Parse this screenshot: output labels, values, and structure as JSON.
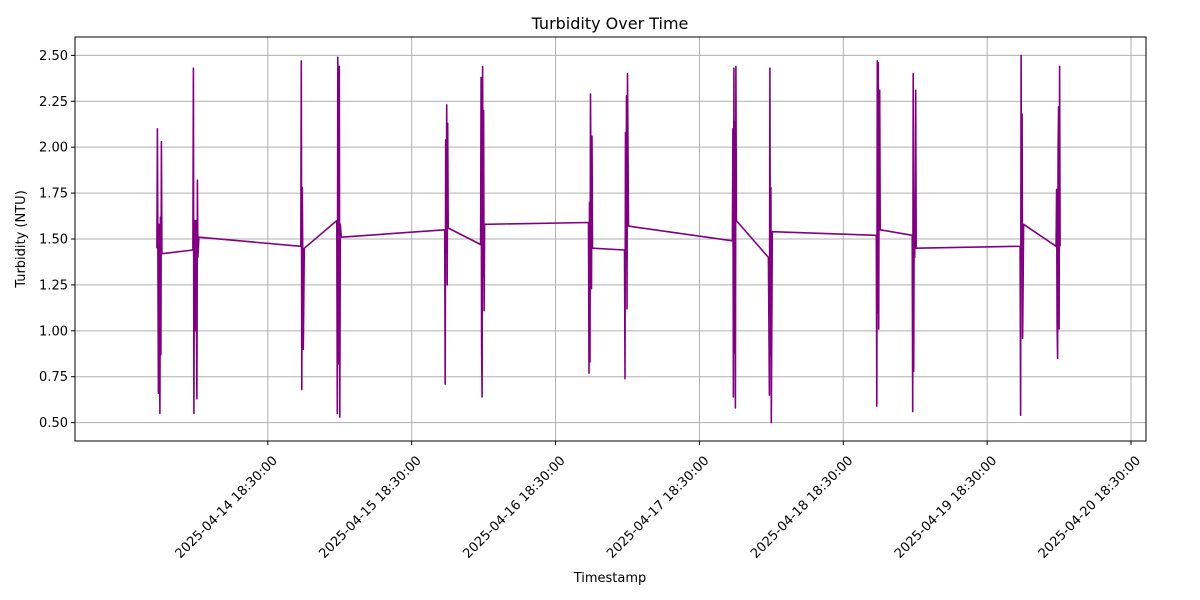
{
  "chart_data": {
    "type": "line",
    "title": "Turbidity Over Time",
    "xlabel": "Timestamp",
    "ylabel": "Turbidity (NTU)",
    "x_type": "datetime",
    "xlim": [
      "2025-04-13 10:20:00",
      "2025-04-20 21:00:00"
    ],
    "ylim": [
      0.4,
      2.6
    ],
    "x_ticks": [
      "2025-04-14 18:30:00",
      "2025-04-15 18:30:00",
      "2025-04-16 18:30:00",
      "2025-04-17 18:30:00",
      "2025-04-18 18:30:00",
      "2025-04-19 18:30:00",
      "2025-04-20 18:30:00"
    ],
    "x_tick_labels": [
      "2025-04-14 18:30:00",
      "2025-04-15 18:30:00",
      "2025-04-16 18:30:00",
      "2025-04-17 18:30:00",
      "2025-04-18 18:30:00",
      "2025-04-19 18:30:00",
      "2025-04-20 18:30:00"
    ],
    "x_tick_rotation": 45,
    "y_ticks": [
      0.5,
      0.75,
      1.0,
      1.25,
      1.5,
      1.75,
      2.0,
      2.25,
      2.5
    ],
    "y_tick_labels": [
      "0.50",
      "0.75",
      "1.00",
      "1.25",
      "1.50",
      "1.75",
      "2.00",
      "2.25",
      "2.50"
    ],
    "grid": true,
    "legend": false,
    "colors": {
      "line": "#800080",
      "grid": "#b0b0b0",
      "axes": "#000000"
    },
    "series": [
      {
        "points": [
          [
            "2025-04-14 00:00:00",
            1.45
          ],
          [
            "2025-04-14 00:05:00",
            2.1
          ],
          [
            "2025-04-14 00:10:00",
            1.4
          ],
          [
            "2025-04-14 00:15:00",
            0.66
          ],
          [
            "2025-04-14 00:20:00",
            1.58
          ],
          [
            "2025-04-14 00:30:00",
            0.55
          ],
          [
            "2025-04-14 00:35:00",
            1.62
          ],
          [
            "2025-04-14 00:40:00",
            0.87
          ],
          [
            "2025-04-14 00:45:00",
            2.03
          ],
          [
            "2025-04-14 00:50:00",
            1.42
          ],
          [
            "2025-04-14 06:00:00",
            1.44
          ],
          [
            "2025-04-14 06:05:00",
            2.43
          ],
          [
            "2025-04-14 06:10:00",
            0.55
          ],
          [
            "2025-04-14 06:15:00",
            1.6
          ],
          [
            "2025-04-14 06:25:00",
            1.0
          ],
          [
            "2025-04-14 06:30:00",
            1.6
          ],
          [
            "2025-04-14 06:40:00",
            0.63
          ],
          [
            "2025-04-14 06:45:00",
            1.82
          ],
          [
            "2025-04-14 06:50:00",
            1.4
          ],
          [
            "2025-04-14 07:00:00",
            1.51
          ],
          [
            "2025-04-15 00:00:00",
            1.46
          ],
          [
            "2025-04-15 00:05:00",
            2.47
          ],
          [
            "2025-04-15 00:10:00",
            0.68
          ],
          [
            "2025-04-15 00:15:00",
            1.78
          ],
          [
            "2025-04-15 00:25:00",
            0.9
          ],
          [
            "2025-04-15 00:35:00",
            1.45
          ],
          [
            "2025-04-15 06:00:00",
            1.6
          ],
          [
            "2025-04-15 06:05:00",
            0.55
          ],
          [
            "2025-04-15 06:10:00",
            2.49
          ],
          [
            "2025-04-15 06:15:00",
            0.82
          ],
          [
            "2025-04-15 06:25:00",
            2.44
          ],
          [
            "2025-04-15 06:30:00",
            0.53
          ],
          [
            "2025-04-15 06:35:00",
            1.58
          ],
          [
            "2025-04-15 06:45:00",
            1.51
          ],
          [
            "2025-04-16 00:00:00",
            1.55
          ],
          [
            "2025-04-16 00:05:00",
            0.71
          ],
          [
            "2025-04-16 00:10:00",
            2.04
          ],
          [
            "2025-04-16 00:15:00",
            1.42
          ],
          [
            "2025-04-16 00:20:00",
            2.23
          ],
          [
            "2025-04-16 00:25:00",
            1.25
          ],
          [
            "2025-04-16 00:30:00",
            2.13
          ],
          [
            "2025-04-16 00:35:00",
            1.56
          ],
          [
            "2025-04-16 06:00:00",
            1.47
          ],
          [
            "2025-04-16 06:05:00",
            2.38
          ],
          [
            "2025-04-16 06:10:00",
            0.9
          ],
          [
            "2025-04-16 06:15:00",
            0.64
          ],
          [
            "2025-04-16 06:20:00",
            2.44
          ],
          [
            "2025-04-16 06:25:00",
            1.3
          ],
          [
            "2025-04-16 06:30:00",
            2.2
          ],
          [
            "2025-04-16 06:35:00",
            1.11
          ],
          [
            "2025-04-16 06:40:00",
            1.58
          ],
          [
            "2025-04-17 00:00:00",
            1.59
          ],
          [
            "2025-04-17 00:05:00",
            0.77
          ],
          [
            "2025-04-17 00:10:00",
            1.7
          ],
          [
            "2025-04-17 00:15:00",
            0.83
          ],
          [
            "2025-04-17 00:20:00",
            2.29
          ],
          [
            "2025-04-17 00:30:00",
            1.23
          ],
          [
            "2025-04-17 00:35:00",
            2.06
          ],
          [
            "2025-04-17 00:40:00",
            1.45
          ],
          [
            "2025-04-17 06:00:00",
            1.44
          ],
          [
            "2025-04-17 06:05:00",
            0.74
          ],
          [
            "2025-04-17 06:10:00",
            2.08
          ],
          [
            "2025-04-17 06:15:00",
            1.4
          ],
          [
            "2025-04-17 06:20:00",
            2.28
          ],
          [
            "2025-04-17 06:25:00",
            1.12
          ],
          [
            "2025-04-17 06:30:00",
            2.4
          ],
          [
            "2025-04-17 06:40:00",
            1.57
          ],
          [
            "2025-04-18 00:00:00",
            1.49
          ],
          [
            "2025-04-18 00:05:00",
            2.1
          ],
          [
            "2025-04-18 00:10:00",
            0.64
          ],
          [
            "2025-04-18 00:15:00",
            2.43
          ],
          [
            "2025-04-18 00:20:00",
            0.88
          ],
          [
            "2025-04-18 00:25:00",
            2.14
          ],
          [
            "2025-04-18 00:30:00",
            0.58
          ],
          [
            "2025-04-18 00:35:00",
            2.44
          ],
          [
            "2025-04-18 00:40:00",
            1.6
          ],
          [
            "2025-04-18 06:00:00",
            1.4
          ],
          [
            "2025-04-18 06:05:00",
            1.04
          ],
          [
            "2025-04-18 06:10:00",
            0.65
          ],
          [
            "2025-04-18 06:15:00",
            2.43
          ],
          [
            "2025-04-18 06:20:00",
            0.87
          ],
          [
            "2025-04-18 06:25:00",
            1.78
          ],
          [
            "2025-04-18 06:30:00",
            0.5
          ],
          [
            "2025-04-18 06:40:00",
            1.54
          ],
          [
            "2025-04-19 00:00:00",
            1.52
          ],
          [
            "2025-04-19 00:05:00",
            0.59
          ],
          [
            "2025-04-19 00:10:00",
            2.47
          ],
          [
            "2025-04-19 00:15:00",
            1.1
          ],
          [
            "2025-04-19 00:20:00",
            2.46
          ],
          [
            "2025-04-19 00:25:00",
            1.01
          ],
          [
            "2025-04-19 00:30:00",
            2.22
          ],
          [
            "2025-04-19 00:35:00",
            2.31
          ],
          [
            "2025-04-19 00:40:00",
            1.55
          ],
          [
            "2025-04-19 06:00:00",
            1.52
          ],
          [
            "2025-04-19 06:05:00",
            0.56
          ],
          [
            "2025-04-19 06:10:00",
            2.4
          ],
          [
            "2025-04-19 06:15:00",
            0.78
          ],
          [
            "2025-04-19 06:20:00",
            1.71
          ],
          [
            "2025-04-19 06:25:00",
            1.4
          ],
          [
            "2025-04-19 06:30:00",
            1.82
          ],
          [
            "2025-04-19 06:35:00",
            2.31
          ],
          [
            "2025-04-19 06:40:00",
            1.45
          ],
          [
            "2025-04-20 00:00:00",
            1.46
          ],
          [
            "2025-04-20 00:05:00",
            0.54
          ],
          [
            "2025-04-20 00:10:00",
            2.5
          ],
          [
            "2025-04-20 00:15:00",
            1.4
          ],
          [
            "2025-04-20 00:20:00",
            2.18
          ],
          [
            "2025-04-20 00:25:00",
            0.96
          ],
          [
            "2025-04-20 00:30:00",
            1.25
          ],
          [
            "2025-04-20 00:35:00",
            1.58
          ],
          [
            "2025-04-20 06:00:00",
            1.46
          ],
          [
            "2025-04-20 06:05:00",
            1.77
          ],
          [
            "2025-04-20 06:10:00",
            1.03
          ],
          [
            "2025-04-20 06:15:00",
            0.85
          ],
          [
            "2025-04-20 06:20:00",
            1.98
          ],
          [
            "2025-04-20 06:25:00",
            2.22
          ],
          [
            "2025-04-20 06:30:00",
            1.01
          ],
          [
            "2025-04-20 06:35:00",
            2.44
          ],
          [
            "2025-04-20 06:40:00",
            1.46
          ]
        ]
      }
    ]
  }
}
